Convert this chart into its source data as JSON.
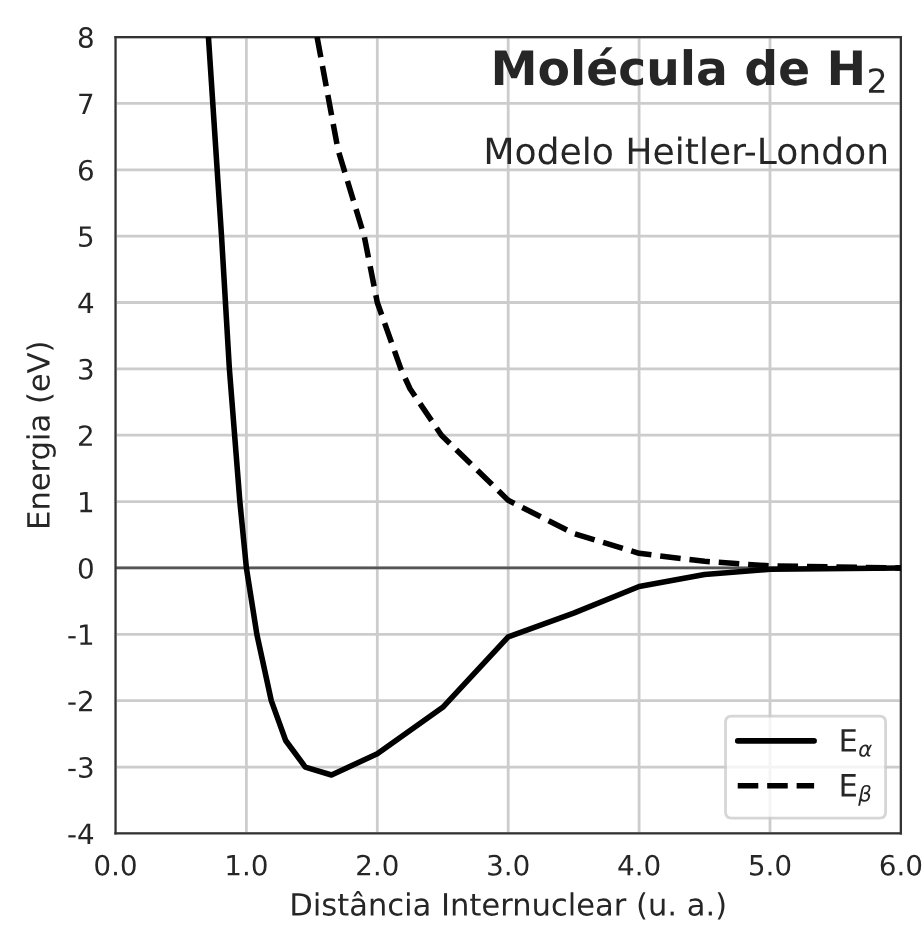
{
  "chart_data": {
    "type": "line",
    "title": "Molécula de H$_{2}$",
    "subtitle": "Modelo Heitler-London",
    "xlabel": "Distância Internuclear (u. a.)",
    "ylabel": "Energia (eV)",
    "series": [
      {
        "name": "E$_{α}$",
        "color": "#000000",
        "line_style": "solid",
        "x": [
          0.71,
          0.81,
          0.87,
          0.95,
          1.0,
          1.08,
          1.19,
          1.3,
          1.45,
          1.65,
          2.0,
          2.5,
          3.0,
          3.5,
          4.0,
          4.5,
          5.0,
          6.0
        ],
        "values": [
          8,
          5,
          3,
          1,
          0,
          -1,
          -2,
          -2.6,
          -3.0,
          -3.12,
          -2.8,
          -2.1,
          -1.04,
          -0.68,
          -0.28,
          -0.1,
          -0.02,
          0
        ]
      },
      {
        "name": "E$_{β}$",
        "color": "#000000",
        "line_style": "dashed",
        "x": [
          1.54,
          1.7,
          1.9,
          2.0,
          2.18,
          2.25,
          2.49,
          3.0,
          3.5,
          4.0,
          4.5,
          5.0,
          6.0
        ],
        "values": [
          8,
          6.3,
          5,
          4,
          3,
          2.7,
          2,
          1.02,
          0.52,
          0.22,
          0.1,
          0.03,
          0
        ]
      }
    ],
    "xlim": [
      0,
      6
    ],
    "ylim": [
      -4,
      8
    ],
    "xticks": [
      {
        "value": 0,
        "label": "0.0"
      },
      {
        "value": 1,
        "label": "1.0"
      },
      {
        "value": 2,
        "label": "2.0"
      },
      {
        "value": 3,
        "label": "3.0"
      },
      {
        "value": 4,
        "label": "4.0"
      },
      {
        "value": 5,
        "label": "5.0"
      },
      {
        "value": 6,
        "label": "6.0"
      }
    ],
    "yticks": [
      -4,
      -3,
      -2,
      -1,
      0,
      1,
      2,
      3,
      4,
      5,
      6,
      7,
      8
    ],
    "ref_lines": [
      {
        "axis": "y",
        "value": 0,
        "color": "#555555"
      }
    ],
    "grid": true,
    "legend": "bottom right"
  }
}
